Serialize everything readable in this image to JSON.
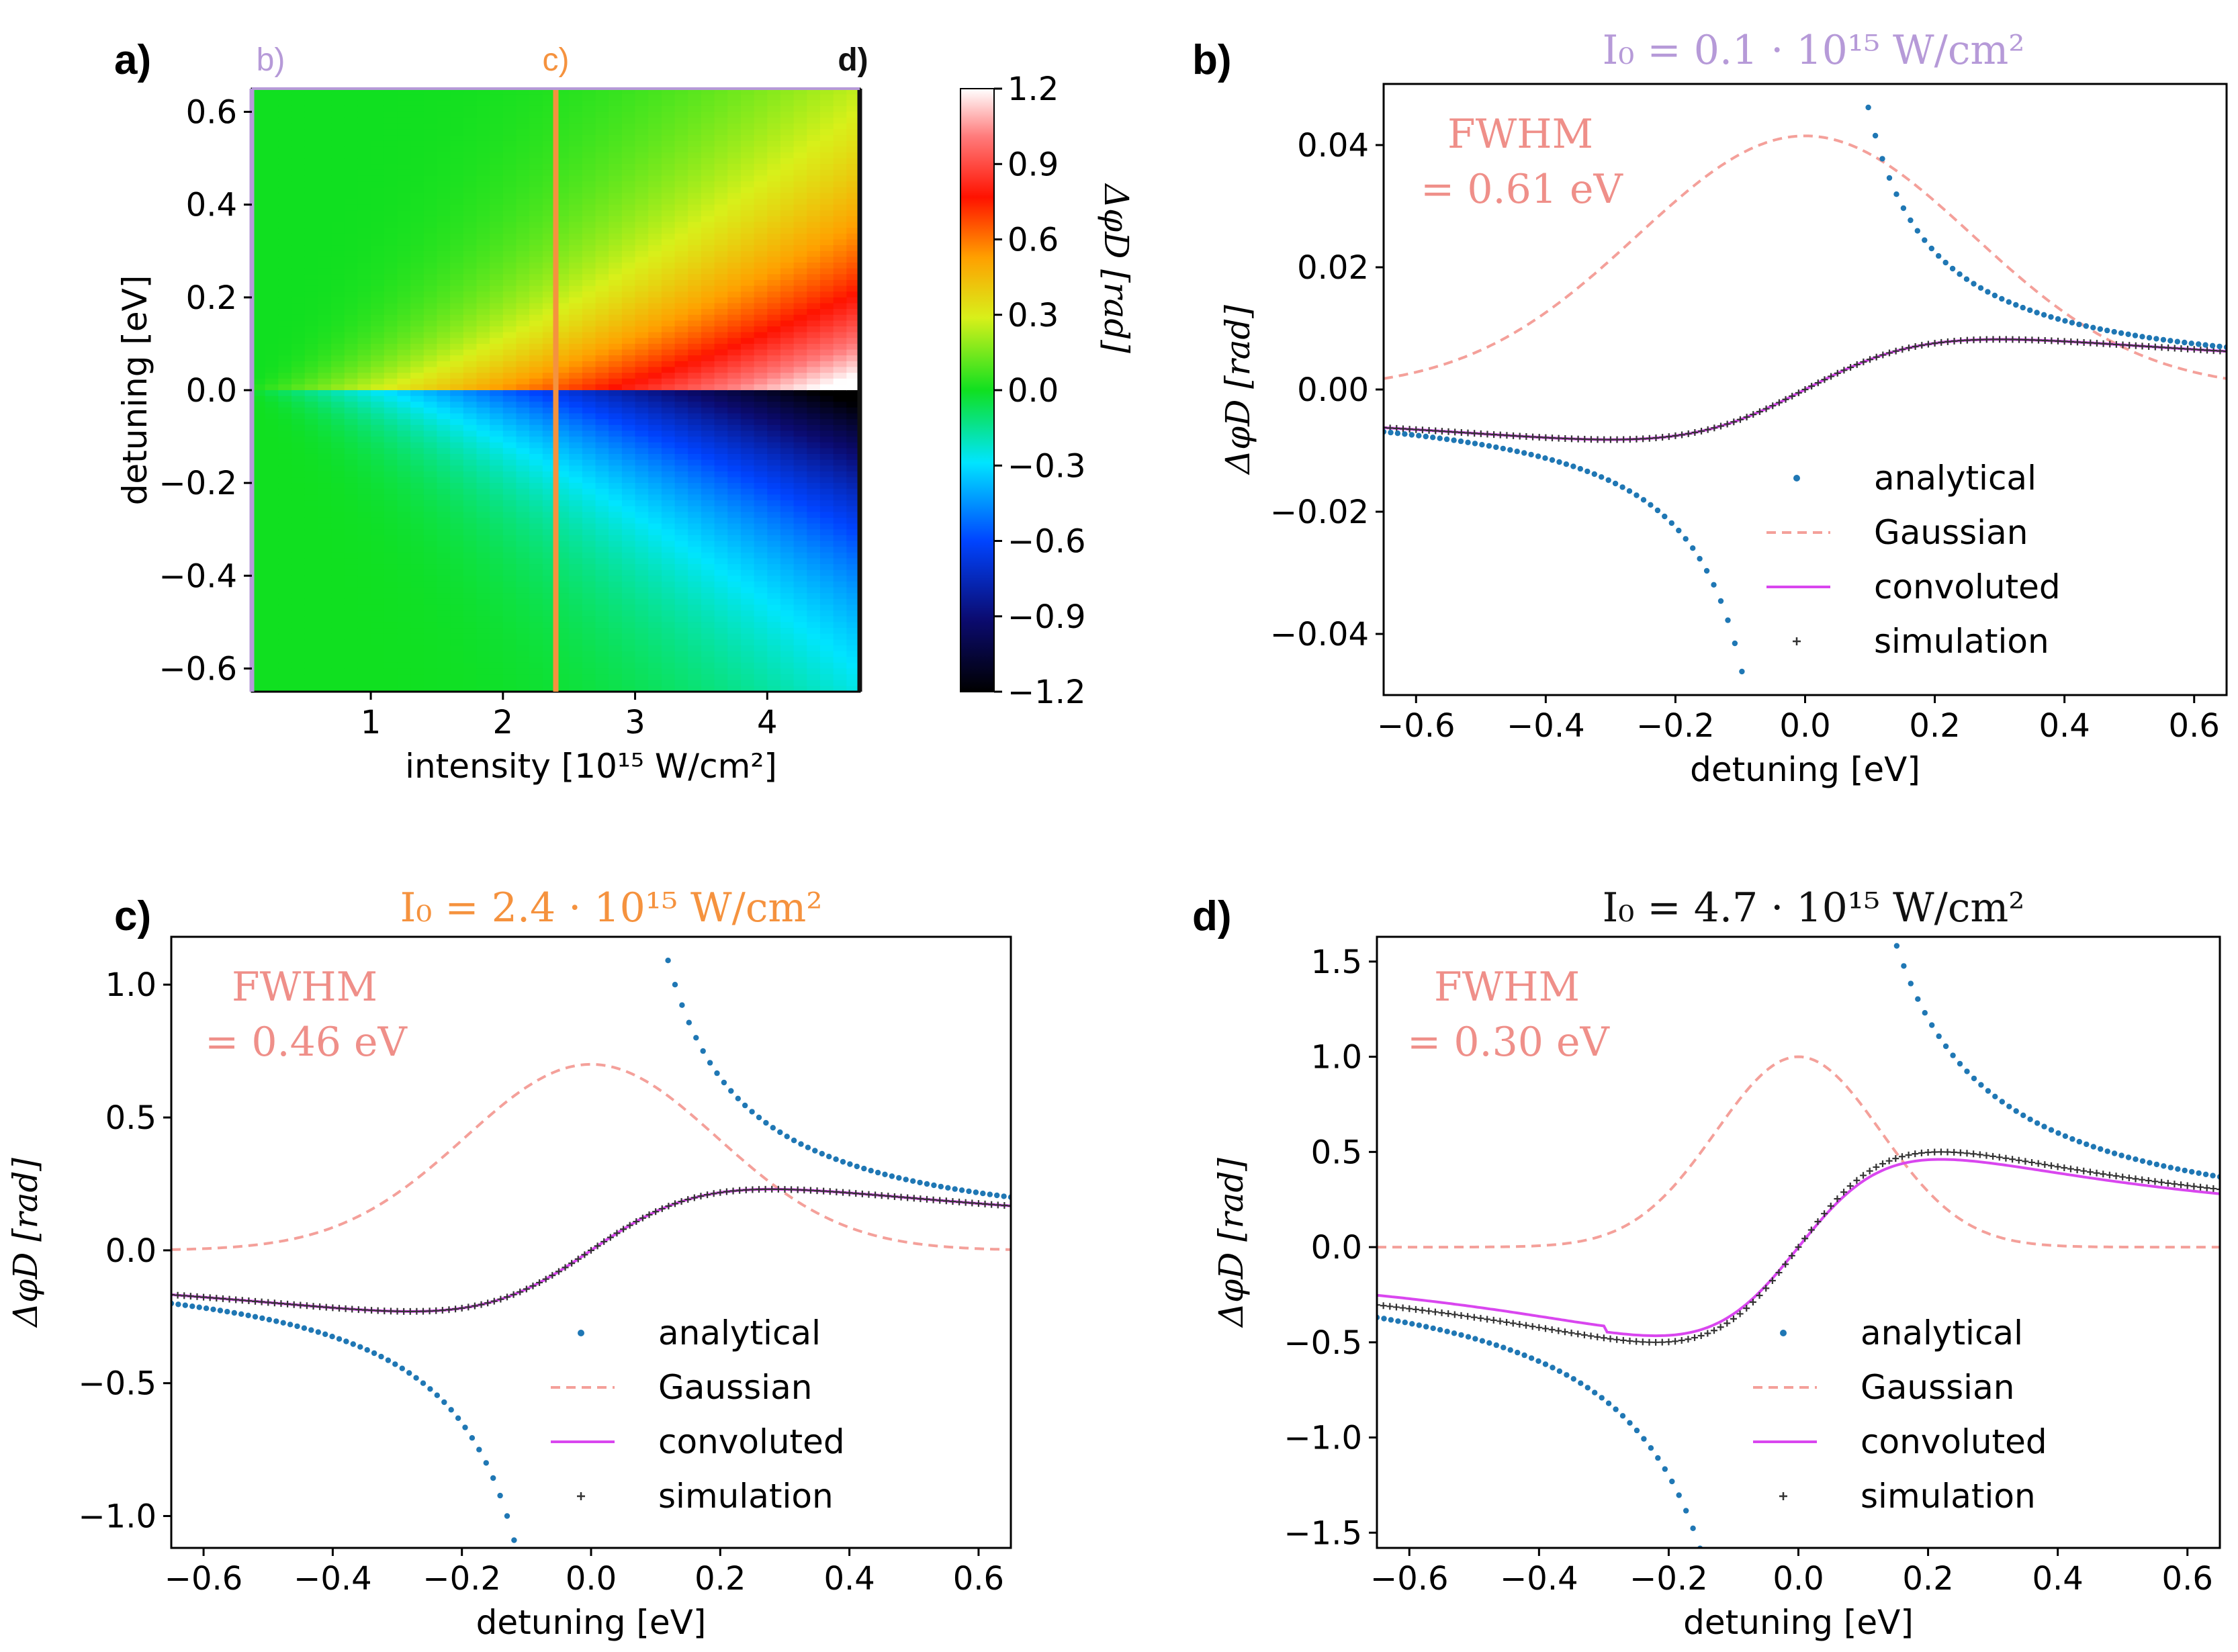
{
  "colors": {
    "analytical": "#1f77b4",
    "gaussian": "#f4a09a",
    "convoluted": "#d946ef",
    "simulation": "#333333",
    "fwhm_text": "#ef8f89",
    "label_b": "#b69ad8",
    "label_c": "#f5923e",
    "label_d": "#111111"
  },
  "chart_data": [
    {
      "id": "a",
      "panel_label": "a)",
      "type": "heatmap",
      "xlabel": "intensity  [10¹⁵ W/cm²]",
      "ylabel": "detuning [eV]",
      "xlim": [
        0.1,
        4.7
      ],
      "ylim": [
        -0.65,
        0.65
      ],
      "xticks": [
        1,
        2,
        3,
        4
      ],
      "xtick_labels": [
        "1",
        "2",
        "3",
        "4"
      ],
      "yticks": [
        -0.6,
        -0.4,
        -0.2,
        0.0,
        0.2,
        0.4,
        0.6
      ],
      "ytick_labels": [
        "−0.6",
        "−0.4",
        "−0.2",
        "0.0",
        "0.2",
        "0.4",
        "0.6"
      ],
      "colorbar": {
        "label": "ΔφD [rad]",
        "range": [
          -1.2,
          1.2
        ],
        "ticks": [
          -1.2,
          -0.9,
          -0.6,
          -0.3,
          0.0,
          0.3,
          0.6,
          0.9,
          1.2
        ],
        "tick_labels": [
          "−1.2",
          "−0.9",
          "−0.6",
          "−0.3",
          "0.0",
          "0.3",
          "0.6",
          "0.9",
          "1.2"
        ],
        "colormap": "gist_ncar-like (black-blue-cyan-green-yellow-orange-red-white)"
      },
      "markers": [
        {
          "label": "b)",
          "intensity": 0.1,
          "color": "#b69ad8"
        },
        {
          "label": "c)",
          "intensity": 2.4,
          "color": "#f5923e"
        },
        {
          "label": "d)",
          "intensity": 4.7,
          "color": "#111111"
        }
      ]
    },
    {
      "id": "b",
      "panel_label": "b)",
      "type": "scatter",
      "title": "I₀ = 0.1 · 10¹⁵  W/cm²",
      "title_color": "#b69ad8",
      "xlabel": "detuning [eV]",
      "ylabel": "ΔφD [rad]",
      "xlim": [
        -0.65,
        0.65
      ],
      "ylim": [
        -0.05,
        0.05
      ],
      "xticks": [
        -0.6,
        -0.4,
        -0.2,
        0.0,
        0.2,
        0.4,
        0.6
      ],
      "xtick_labels": [
        "−0.6",
        "−0.4",
        "−0.2",
        "0.0",
        "0.2",
        "0.4",
        "0.6"
      ],
      "yticks": [
        -0.04,
        -0.02,
        0.0,
        0.02,
        0.04
      ],
      "ytick_labels": [
        "−0.04",
        "−0.02",
        "0.00",
        "0.02",
        "0.04"
      ],
      "fwhm_line1": "FWHM",
      "fwhm_line2": "= 0.61 eV",
      "series": [
        {
          "name": "analytical",
          "style": "dots",
          "model": "analytical",
          "K": 0.0045,
          "gap": 0.1
        },
        {
          "name": "Gaussian",
          "style": "dashed",
          "model": "gaussian",
          "peak": 0.0415,
          "fwhm": 0.61
        },
        {
          "name": "convoluted",
          "style": "line",
          "model": "dispersion",
          "A": 0.0082,
          "w": 0.3
        },
        {
          "name": "simulation",
          "style": "plus",
          "model": "dispersion",
          "A": 0.0082,
          "w": 0.3
        }
      ],
      "legend": [
        "analytical",
        "Gaussian",
        "convoluted",
        "simulation"
      ]
    },
    {
      "id": "c",
      "panel_label": "c)",
      "type": "scatter",
      "title": "I₀ = 2.4 · 10¹⁵  W/cm²",
      "title_color": "#f5923e",
      "xlabel": "detuning [eV]",
      "ylabel": "ΔφD [rad]",
      "xlim": [
        -0.65,
        0.65
      ],
      "ylim": [
        -1.12,
        1.18
      ],
      "xticks": [
        -0.6,
        -0.4,
        -0.2,
        0.0,
        0.2,
        0.4,
        0.6
      ],
      "xtick_labels": [
        "−0.6",
        "−0.4",
        "−0.2",
        "0.0",
        "0.2",
        "0.4",
        "0.6"
      ],
      "yticks": [
        -1.0,
        -0.5,
        0.0,
        0.5,
        1.0
      ],
      "ytick_labels": [
        "−1.0",
        "−0.5",
        "0.0",
        "0.5",
        "1.0"
      ],
      "fwhm_line1": "FWHM",
      "fwhm_line2": "= 0.46 eV",
      "series": [
        {
          "name": "analytical",
          "style": "dots",
          "model": "analytical",
          "K": 0.13,
          "gap": 0.0
        },
        {
          "name": "Gaussian",
          "style": "dashed",
          "model": "gaussian",
          "peak": 0.7,
          "fwhm": 0.46
        },
        {
          "name": "convoluted",
          "style": "line",
          "model": "dispersion",
          "A": 0.23,
          "w": 0.28
        },
        {
          "name": "simulation",
          "style": "plus",
          "model": "dispersion",
          "A": 0.23,
          "w": 0.28
        }
      ],
      "legend": [
        "analytical",
        "Gaussian",
        "convoluted",
        "simulation"
      ]
    },
    {
      "id": "d",
      "panel_label": "d)",
      "type": "scatter",
      "title": "I₀ = 4.7 · 10¹⁵  W/cm²",
      "title_color": "#111111",
      "xlabel": "detuning [eV]",
      "ylabel": "ΔφD [rad]",
      "xlim": [
        -0.65,
        0.65
      ],
      "ylim": [
        -1.58,
        1.63
      ],
      "xticks": [
        -0.6,
        -0.4,
        -0.2,
        0.0,
        0.2,
        0.4,
        0.6
      ],
      "xtick_labels": [
        "−0.6",
        "−0.4",
        "−0.2",
        "0.0",
        "0.2",
        "0.4",
        "0.6"
      ],
      "yticks": [
        -1.5,
        -1.0,
        -0.5,
        0.0,
        0.5,
        1.0,
        1.5
      ],
      "ytick_labels": [
        "−1.5",
        "−1.0",
        "−0.5",
        "0.0",
        "0.5",
        "1.0",
        "1.5"
      ],
      "fwhm_line1": "FWHM",
      "fwhm_line2": "= 0.30 eV",
      "series": [
        {
          "name": "analytical",
          "style": "dots",
          "model": "analytical",
          "K": 0.24,
          "gap": 0.0
        },
        {
          "name": "Gaussian",
          "style": "dashed",
          "model": "gaussian",
          "peak": 1.0,
          "fwhm": 0.3
        },
        {
          "name": "convoluted",
          "style": "line",
          "model": "dispersion",
          "A": 0.48,
          "w": 0.22
        },
        {
          "name": "simulation",
          "style": "plus",
          "model": "dispersion",
          "A": 0.5,
          "w": 0.22
        }
      ],
      "legend": [
        "analytical",
        "Gaussian",
        "convoluted",
        "simulation"
      ]
    }
  ]
}
